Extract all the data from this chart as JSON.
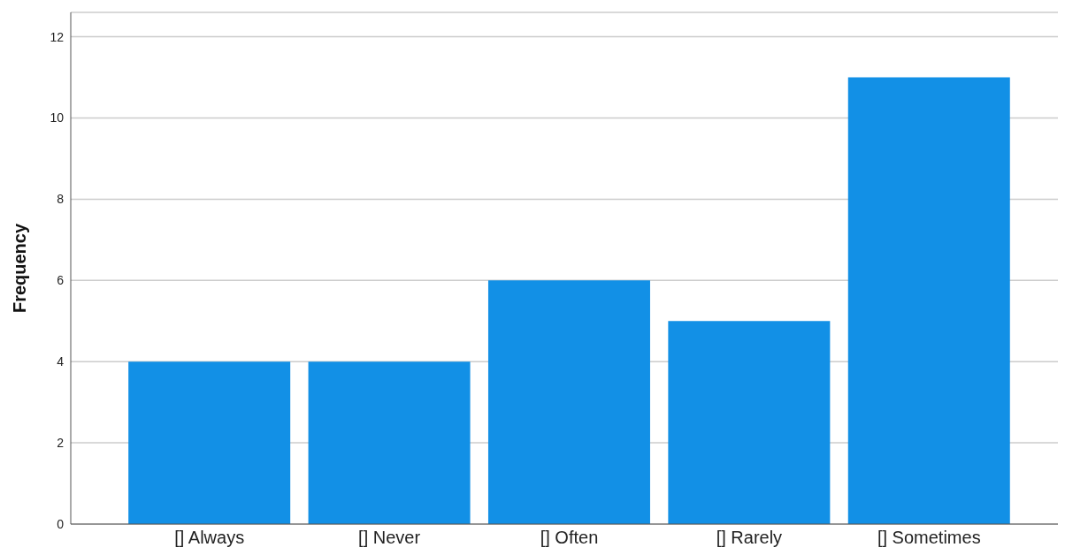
{
  "chart_data": {
    "type": "bar",
    "ylabel": "Frequency",
    "categories": [
      "[] Always",
      "[] Never",
      "[] Often",
      "[] Rarely",
      "[] Sometimes"
    ],
    "values": [
      4,
      4,
      6,
      5,
      11
    ],
    "color": "#1290e6",
    "ylim": [
      0,
      12.6
    ],
    "yticks": [
      0,
      2,
      4,
      6,
      8,
      10,
      12
    ],
    "grid": "y"
  }
}
